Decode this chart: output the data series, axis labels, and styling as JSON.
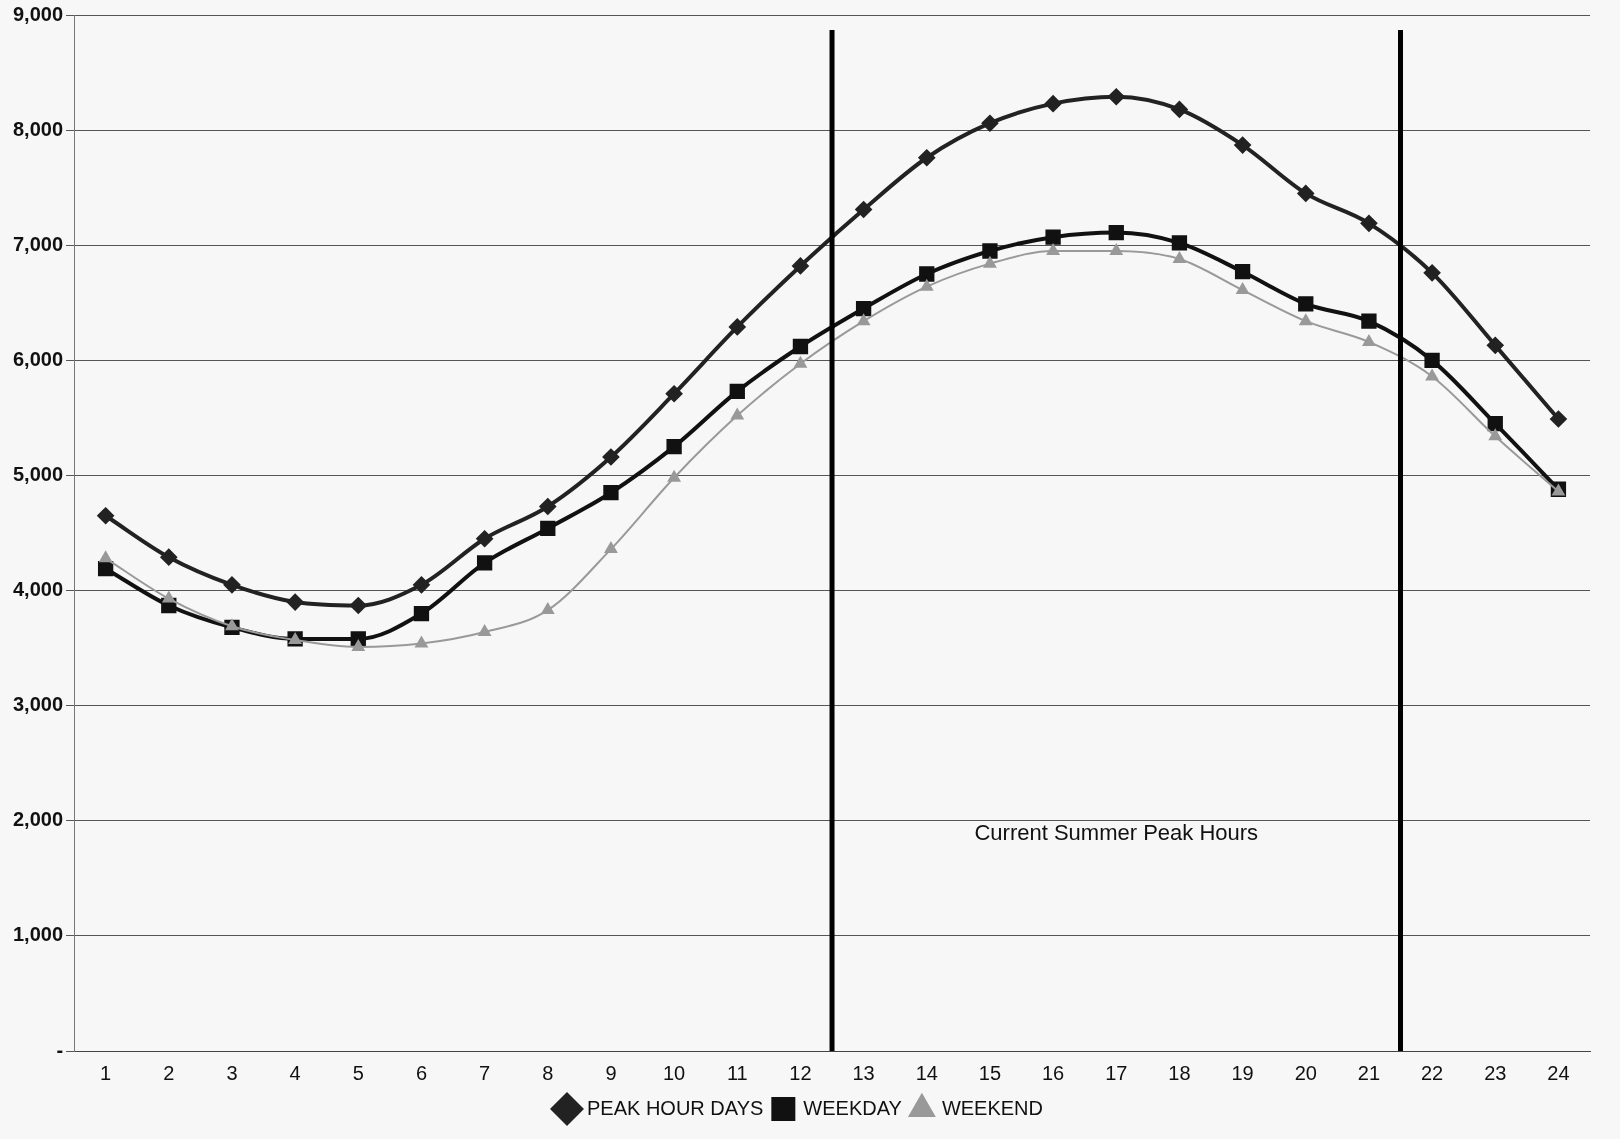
{
  "chart_data": {
    "type": "line",
    "x": [
      1,
      2,
      3,
      4,
      5,
      6,
      7,
      8,
      9,
      10,
      11,
      12,
      13,
      14,
      15,
      16,
      17,
      18,
      19,
      20,
      21,
      22,
      23,
      24
    ],
    "xlim": [
      0.5,
      24.5
    ],
    "xticks": [
      1,
      2,
      3,
      4,
      5,
      6,
      7,
      8,
      9,
      10,
      11,
      12,
      13,
      14,
      15,
      16,
      17,
      18,
      19,
      20,
      21,
      22,
      23,
      24
    ],
    "ylim": [
      0,
      9000
    ],
    "yticks": [
      {
        "value": 0,
        "label": "-"
      },
      {
        "value": 1000,
        "label": "1,000"
      },
      {
        "value": 2000,
        "label": "2,000"
      },
      {
        "value": 3000,
        "label": "3,000"
      },
      {
        "value": 4000,
        "label": "4,000"
      },
      {
        "value": 5000,
        "label": "5,000"
      },
      {
        "value": 6000,
        "label": "6,000"
      },
      {
        "value": 7000,
        "label": "7,000"
      },
      {
        "value": 8000,
        "label": "8,000"
      },
      {
        "value": 9000,
        "label": "9,000"
      }
    ],
    "grid": "y",
    "legend": "bottom",
    "series": [
      {
        "name": "PEAK HOUR DAYS",
        "color": "#222222",
        "marker": "diamond",
        "values": [
          4650,
          4290,
          4050,
          3900,
          3870,
          4050,
          4450,
          4730,
          5160,
          5710,
          6290,
          6820,
          7310,
          7760,
          8060,
          8230,
          8290,
          8180,
          7870,
          7450,
          7190,
          6760,
          6130,
          5490
        ]
      },
      {
        "name": "WEEKDAY",
        "color": "#111111",
        "marker": "square",
        "values": [
          4190,
          3870,
          3680,
          3580,
          3580,
          3800,
          4240,
          4540,
          4850,
          5250,
          5730,
          6120,
          6450,
          6750,
          6950,
          7070,
          7110,
          7020,
          6770,
          6490,
          6340,
          6000,
          5450,
          4880
        ]
      },
      {
        "name": "WEEKEND",
        "color": "#999999",
        "marker": "triangle",
        "values": [
          4280,
          3930,
          3690,
          3570,
          3510,
          3540,
          3640,
          3830,
          4360,
          4980,
          5520,
          5970,
          6340,
          6640,
          6840,
          6950,
          6950,
          6880,
          6610,
          6340,
          6160,
          5860,
          5340,
          4860
        ]
      }
    ],
    "ref_lines": [
      {
        "axis": "x",
        "value": 12.5,
        "color": "#000000"
      },
      {
        "axis": "x",
        "value": 21.5,
        "color": "#000000"
      }
    ],
    "annotations": [
      "Current Summer Peak Hours"
    ]
  }
}
